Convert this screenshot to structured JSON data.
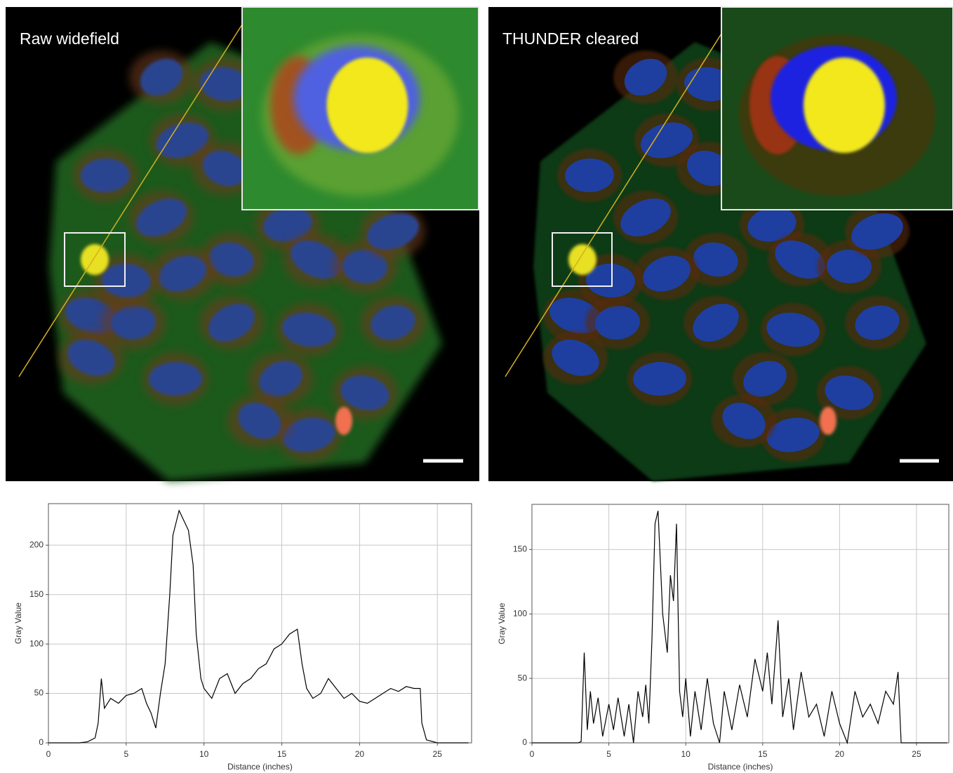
{
  "panels": [
    {
      "label": "Raw widefield"
    },
    {
      "label": "THUNDER cleared"
    }
  ],
  "chart_data": [
    {
      "type": "line",
      "x_label": "Distance (inches)",
      "y_label": "Gray Value",
      "color": "#000000",
      "grid": true,
      "xlim": [
        0,
        27.2
      ],
      "ylim": [
        0,
        242
      ],
      "xticks": [
        0,
        5,
        10,
        15,
        20,
        25
      ],
      "yticks": [
        0,
        50,
        100,
        150,
        200
      ],
      "x": [
        0,
        1,
        2,
        2.5,
        3,
        3.2,
        3.4,
        3.6,
        4,
        4.5,
        5,
        5.5,
        6,
        6.3,
        6.6,
        6.9,
        7.2,
        7.5,
        7.8,
        8,
        8.4,
        8.7,
        9,
        9.3,
        9.5,
        9.8,
        10,
        10.5,
        11,
        11.5,
        12,
        12.5,
        13,
        13.5,
        14,
        14.5,
        15,
        15.5,
        16,
        16.3,
        16.6,
        17,
        17.5,
        18,
        18.5,
        19,
        19.5,
        20,
        20.5,
        21,
        21.5,
        22,
        22.5,
        23,
        23.5,
        23.9,
        24,
        24.3,
        25,
        27
      ],
      "values": [
        0,
        0,
        0,
        1,
        5,
        20,
        65,
        35,
        45,
        40,
        48,
        50,
        55,
        40,
        30,
        15,
        50,
        80,
        150,
        210,
        235,
        225,
        215,
        180,
        110,
        65,
        55,
        45,
        65,
        70,
        50,
        60,
        65,
        75,
        80,
        95,
        100,
        110,
        115,
        80,
        55,
        45,
        50,
        65,
        55,
        45,
        50,
        42,
        40,
        45,
        50,
        55,
        52,
        57,
        55,
        55,
        20,
        3,
        0,
        0
      ]
    },
    {
      "type": "line",
      "x_label": "Distance (inches)",
      "y_label": "Gray Value",
      "color": "#000000",
      "grid": true,
      "xlim": [
        0,
        27.1
      ],
      "ylim": [
        0,
        185
      ],
      "xticks": [
        0,
        5,
        10,
        15,
        20,
        25
      ],
      "yticks": [
        0,
        50,
        100,
        150
      ],
      "x": [
        0,
        3,
        3.2,
        3.4,
        3.6,
        3.8,
        4,
        4.3,
        4.6,
        5,
        5.3,
        5.6,
        6,
        6.3,
        6.6,
        6.9,
        7.2,
        7.4,
        7.6,
        7.8,
        8,
        8.2,
        8.5,
        8.8,
        9,
        9.2,
        9.4,
        9.6,
        9.8,
        10,
        10.3,
        10.6,
        11,
        11.4,
        11.8,
        12.2,
        12.5,
        13,
        13.5,
        14,
        14.5,
        15,
        15.3,
        15.6,
        16,
        16.3,
        16.7,
        17,
        17.5,
        18,
        18.5,
        19,
        19.5,
        20,
        20.5,
        21,
        21.5,
        22,
        22.5,
        23,
        23.5,
        23.8,
        24,
        25,
        27
      ],
      "values": [
        0,
        0,
        1,
        70,
        10,
        40,
        15,
        35,
        5,
        30,
        10,
        35,
        5,
        30,
        0,
        40,
        20,
        45,
        15,
        80,
        170,
        180,
        100,
        70,
        130,
        110,
        170,
        40,
        20,
        50,
        5,
        40,
        10,
        50,
        15,
        0,
        40,
        10,
        45,
        20,
        65,
        40,
        70,
        30,
        95,
        20,
        50,
        10,
        55,
        20,
        30,
        5,
        40,
        15,
        0,
        40,
        20,
        30,
        15,
        40,
        30,
        55,
        0,
        0,
        0
      ]
    }
  ]
}
